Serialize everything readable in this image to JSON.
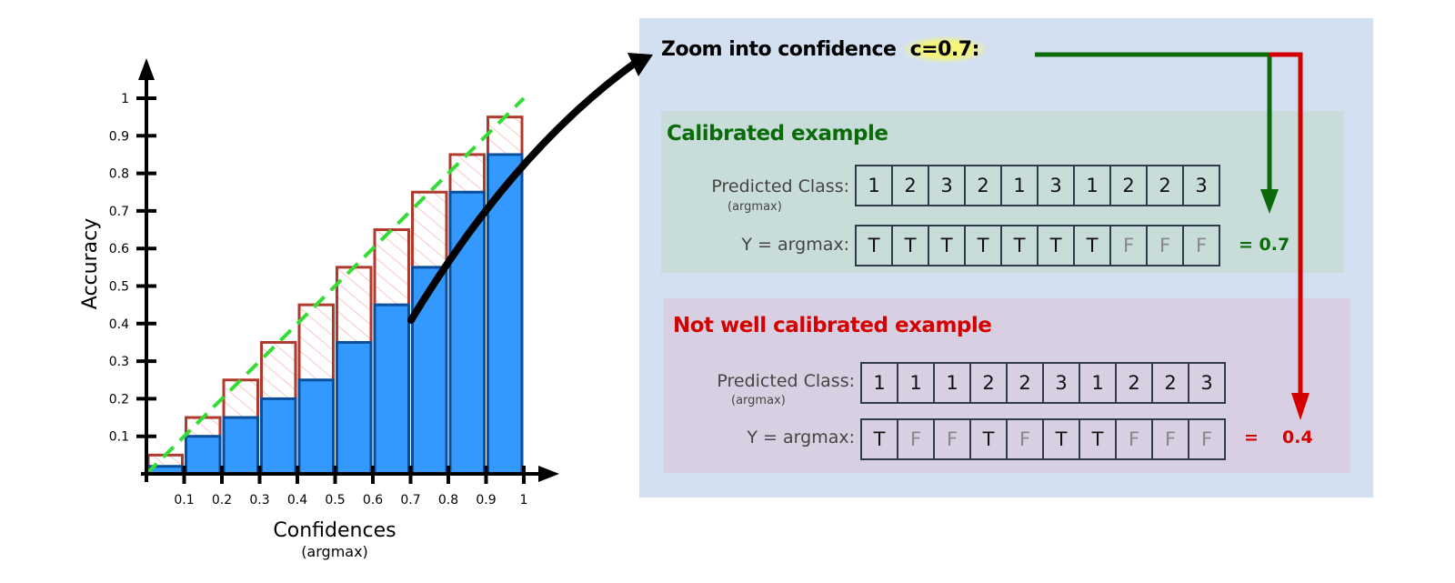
{
  "chart_data": {
    "type": "bar",
    "xlabel": "Confidences",
    "xlabel_sub": "(argmax)",
    "ylabel": "Accuracy",
    "x_ticks": [
      "0.1",
      "0.2",
      "0.3",
      "0.4",
      "0.5",
      "0.6",
      "0.7",
      "0.8",
      "0.9",
      "1"
    ],
    "y_ticks": [
      "0.1",
      "0.2",
      "0.3",
      "0.4",
      "0.5",
      "0.6",
      "0.7",
      "0.8",
      "0.9",
      "1"
    ],
    "xlim": [
      0,
      1
    ],
    "ylim": [
      0,
      1
    ],
    "bin_edges": [
      0,
      0.1,
      0.2,
      0.3,
      0.4,
      0.5,
      0.6,
      0.7,
      0.8,
      0.9,
      1
    ],
    "series": [
      {
        "values": [
          0.02,
          0.1,
          0.15,
          0.2,
          0.25,
          0.35,
          0.45,
          0.55,
          0.75,
          0.85
        ],
        "color": "#3399ff"
      },
      {
        "values": [
          0.05,
          0.15,
          0.25,
          0.35,
          0.45,
          0.55,
          0.65,
          0.75,
          0.85,
          0.95
        ],
        "color": "#b03a2e"
      }
    ],
    "diagonal_color": "#33dd33",
    "grid": false
  },
  "zoom": {
    "prefix": "Zoom into confidence ",
    "highlight": "c=0.7:"
  },
  "calibrated": {
    "title": "Calibrated example",
    "pred_label": "Predicted Class:",
    "pred_sub": "(argmax)",
    "pred": [
      "1",
      "2",
      "3",
      "2",
      "1",
      "3",
      "1",
      "2",
      "2",
      "3"
    ],
    "y_label": "Y = argmax:",
    "y": [
      "T",
      "T",
      "T",
      "T",
      "T",
      "T",
      "T",
      "F",
      "F",
      "F"
    ],
    "result": "= 0.7",
    "color": "#0b6b0b"
  },
  "uncalibrated": {
    "title": "Not well calibrated example",
    "pred_label": "Predicted Class:",
    "pred_sub": "(argmax)",
    "pred": [
      "1",
      "1",
      "1",
      "2",
      "2",
      "3",
      "1",
      "2",
      "2",
      "3"
    ],
    "y_label": "Y = argmax:",
    "y": [
      "T",
      "F",
      "F",
      "T",
      "F",
      "T",
      "T",
      "F",
      "F",
      "F"
    ],
    "result_eq": "=",
    "result": "0.4",
    "color": "#d40000"
  }
}
